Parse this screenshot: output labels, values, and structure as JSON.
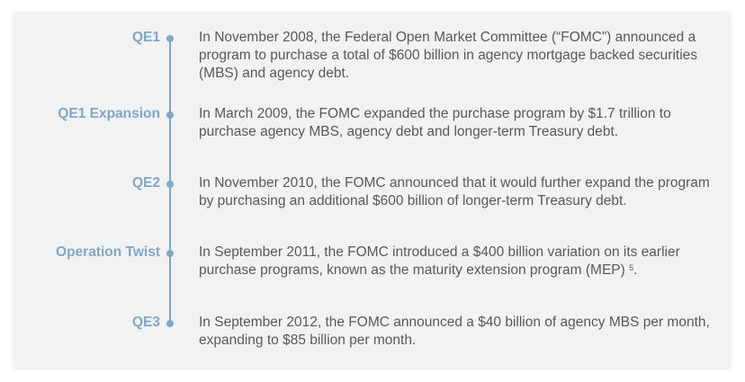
{
  "timeline": {
    "entries": [
      {
        "label": "QE1",
        "text": "In November 2008, the Federal Open Market Committee (“FOMC”) announced a program to purchase a total of $600 billion in agency mortgage backed securities (MBS) and agency debt."
      },
      {
        "label": "QE1 Expansion",
        "text": "In March 2009, the FOMC expanded the purchase program by $1.7 trillion to purchase agency MBS, agency debt and longer-term Treasury debt."
      },
      {
        "label": "QE2",
        "text": "In November 2010, the FOMC announced that it would further expand the program by purchasing an additional $600 billion of longer-term Treasury debt."
      },
      {
        "label": "Operation Twist",
        "text": "In September 2011, the FOMC introduced a $400 billion variation on its earlier purchase programs, known as the maturity extension program (MEP)",
        "footnote": "5",
        "trailing": "."
      },
      {
        "label": "QE3",
        "text": "In September 2012, the FOMC announced a $40 billion of agency MBS per month, expanding to $85 billion per month."
      }
    ]
  },
  "colors": {
    "accent": "#7fa7c6",
    "text": "#595959",
    "panel": "#f2f2f2"
  }
}
